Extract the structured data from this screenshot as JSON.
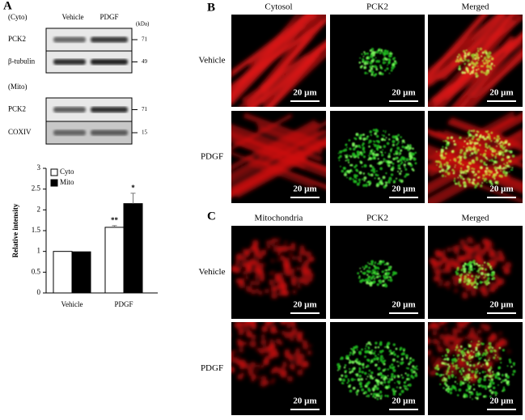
{
  "panel_a": {
    "label": "A",
    "blot": {
      "cyto_label": "(Cyto)",
      "mito_label": "(Mito)",
      "lanes": [
        "Vehicle",
        "PDGF"
      ],
      "unit": "(kDa)",
      "rows": [
        {
          "name": "PCK2",
          "kda": "71"
        },
        {
          "name": "β-tubulin",
          "kda": "49"
        },
        {
          "name": "PCK2",
          "kda": "71"
        },
        {
          "name": "COXIV",
          "kda": "15"
        }
      ]
    },
    "chart": {
      "type": "bar",
      "y_label": "Relative intensity",
      "categories": [
        "Vehicle",
        "PDGF"
      ],
      "series": [
        {
          "name": "Cyto",
          "color": "#ffffff",
          "values": [
            1.0,
            1.58
          ],
          "errors": [
            null,
            0.04
          ],
          "significance": [
            null,
            "**"
          ]
        },
        {
          "name": "Mito",
          "color": "#000000",
          "values": [
            0.99,
            2.15
          ],
          "errors": [
            null,
            0.25
          ],
          "significance": [
            null,
            "*"
          ]
        }
      ],
      "ylim": [
        0,
        3
      ],
      "yticks": [
        0,
        0.5,
        1,
        1.5,
        2,
        2.5,
        3
      ]
    }
  },
  "panel_b": {
    "label": "B",
    "columns": [
      "Cytosol",
      "PCK2",
      "Merged"
    ],
    "rows": [
      "Vehicle",
      "PDGF"
    ],
    "scale_bars": [
      [
        "20 µm",
        "20 µm",
        "20 µm"
      ],
      [
        "20 µm",
        "20 µm",
        "20 µm"
      ]
    ]
  },
  "panel_c": {
    "label": "C",
    "columns": [
      "Mitochondria",
      "PCK2",
      "Merged"
    ],
    "rows": [
      "Vehicle",
      "PDGF"
    ],
    "scale_bars": [
      [
        "20 µm",
        "20 µm",
        "20 µm"
      ],
      [
        "20 µm",
        "20 µm",
        "20 µm"
      ]
    ]
  }
}
